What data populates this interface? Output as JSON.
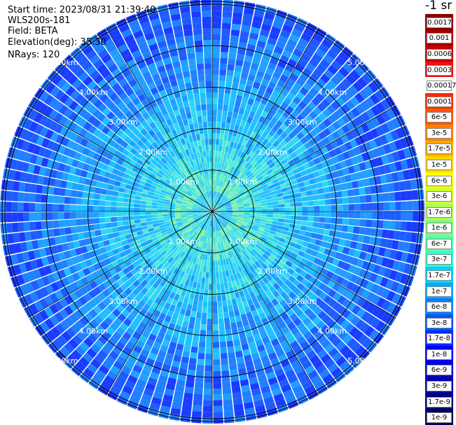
{
  "header": {
    "start_time": "Start time: 2023/08/31 21:39:40",
    "instrument": "WLS200s-181",
    "field": "Field: BETA",
    "elevation": "Elevation(deg): 35.30",
    "nrays": "NRays: 120"
  },
  "colorbar": {
    "title": "-1 sr",
    "labels": [
      "0.0017",
      "0.001",
      "0.0006",
      "0.0003",
      "0.00017",
      "0.0001",
      "6e-5",
      "3e-5",
      "1.7e-5",
      "1e-5",
      "6e-6",
      "3e-6",
      "1.7e-6",
      "1e-6",
      "6e-7",
      "3e-7",
      "1.7e-7",
      "1e-7",
      "6e-8",
      "3e-8",
      "1.7e-8",
      "1e-8",
      "6e-9",
      "3e-9",
      "1.7e-9",
      "1e-9"
    ],
    "colors": [
      "#8b0000",
      "#a00000",
      "#c80000",
      "#f01010",
      "#ffffff",
      "#ff2a00",
      "#ff5500",
      "#ff8000",
      "#ffaa00",
      "#ffd500",
      "#ffff00",
      "#d4ff2a",
      "#aaff55",
      "#80ff80",
      "#55ffaa",
      "#2affd4",
      "#00d4ff",
      "#00aaff",
      "#0080ff",
      "#0055ff",
      "#002aff",
      "#0000ff",
      "#0000d4",
      "#0000aa",
      "#000080",
      "#000055"
    ]
  },
  "range_rings": {
    "labels": [
      "1.00km",
      "2.00km",
      "3.00km",
      "4.00km",
      "5.00km"
    ]
  }
}
